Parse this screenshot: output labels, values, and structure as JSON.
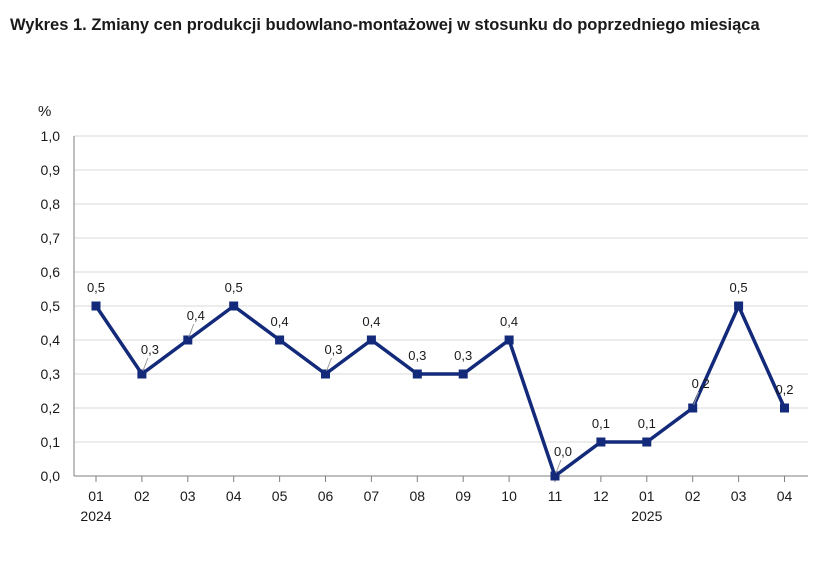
{
  "chart_data": {
    "type": "line",
    "title": "Wykres 1. Zmiany cen produkcji budowlano-montażowej w stosunku do poprzedniego miesiąca",
    "ylabel": "%",
    "ylim": [
      0,
      1.0
    ],
    "yticks": [
      "0,0",
      "0,1",
      "0,2",
      "0,3",
      "0,4",
      "0,5",
      "0,6",
      "0,7",
      "0,8",
      "0,9",
      "1,0"
    ],
    "categories": [
      "01",
      "02",
      "03",
      "04",
      "05",
      "06",
      "07",
      "08",
      "09",
      "10",
      "11",
      "12",
      "01",
      "02",
      "03",
      "04"
    ],
    "year_labels": [
      {
        "index": 0,
        "label": "2024"
      },
      {
        "index": 12,
        "label": "2025"
      }
    ],
    "series": [
      {
        "values": [
          0.5,
          0.3,
          0.4,
          0.5,
          0.4,
          0.3,
          0.4,
          0.3,
          0.3,
          0.4,
          0.0,
          0.1,
          0.1,
          0.2,
          0.5,
          0.2
        ],
        "labels": [
          "0,5",
          "0,3",
          "0,4",
          "0,5",
          "0,4",
          "0,3",
          "0,4",
          "0,3",
          "0,3",
          "0,4",
          "0,0",
          "0,1",
          "0,1",
          "0,2",
          "0,5",
          "0,2"
        ]
      }
    ],
    "grid": true,
    "legend": "none",
    "colors": {
      "line": "#132a7a",
      "grid": "#d9d9d9",
      "axis": "#7f7f7f"
    }
  }
}
